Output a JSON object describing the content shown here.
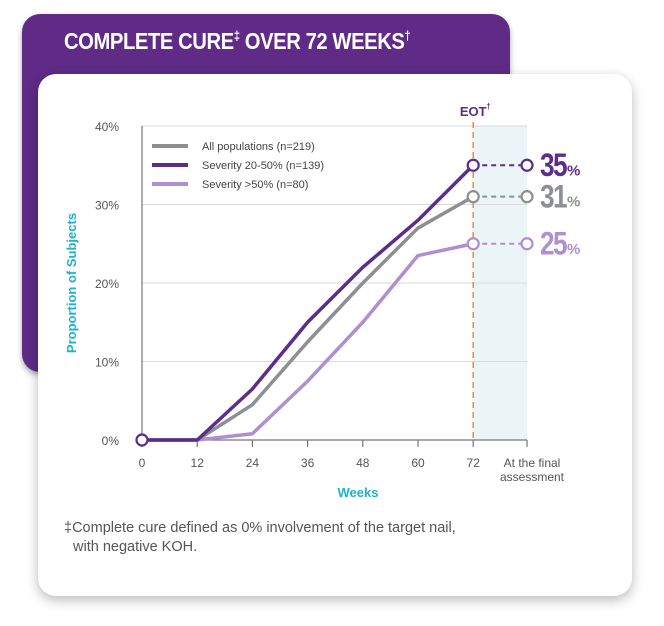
{
  "header": {
    "title": "COMPLETE CURE",
    "title_mark": "‡",
    "title_rest": " OVER 72 WEEKS",
    "title_sup": "†"
  },
  "footnote": {
    "mark": "‡",
    "line1": "Complete cure defined as 0% involvement of the target nail,",
    "line2": "with negative KOH."
  },
  "chart_data": {
    "type": "line",
    "xlabel": "Weeks",
    "ylabel": "Proportion of Subjects",
    "ylim": [
      0,
      40
    ],
    "yticks": [
      "0%",
      "10%",
      "20%",
      "30%",
      "40%"
    ],
    "x": [
      0,
      12,
      24,
      36,
      48,
      60,
      72
    ],
    "xticks": [
      "0",
      "12",
      "24",
      "36",
      "48",
      "60",
      "72"
    ],
    "final_label": [
      "At the final",
      "assessment"
    ],
    "eot_label": "EOT",
    "eot_sup": "†",
    "eot_week": 72,
    "grid": true,
    "legend_position": "top-left",
    "series": [
      {
        "name": "All populations (n=219)",
        "color": "#8e8f93",
        "values": [
          0,
          0,
          4.5,
          12.5,
          20,
          27,
          31
        ],
        "final": 31,
        "final_label": "31",
        "pct": "%"
      },
      {
        "name": "Severity 20-50% (n=139)",
        "color": "#5c2d8a",
        "values": [
          0,
          0,
          6.5,
          15,
          22,
          28,
          35
        ],
        "final": 35,
        "final_label": "35",
        "pct": "%"
      },
      {
        "name": "Severity >50% (n=80)",
        "color": "#b08fd0",
        "values": [
          0,
          0,
          0.8,
          7.5,
          15,
          23.5,
          25
        ],
        "final": 25,
        "final_label": "25",
        "pct": "%"
      }
    ],
    "colors": {
      "axis_text": "#555555",
      "label_accent": "#1ab3cc",
      "eot_line": "#f08a3a",
      "eot_text": "#5c2d8a",
      "shade": "#ebf5f8"
    }
  }
}
